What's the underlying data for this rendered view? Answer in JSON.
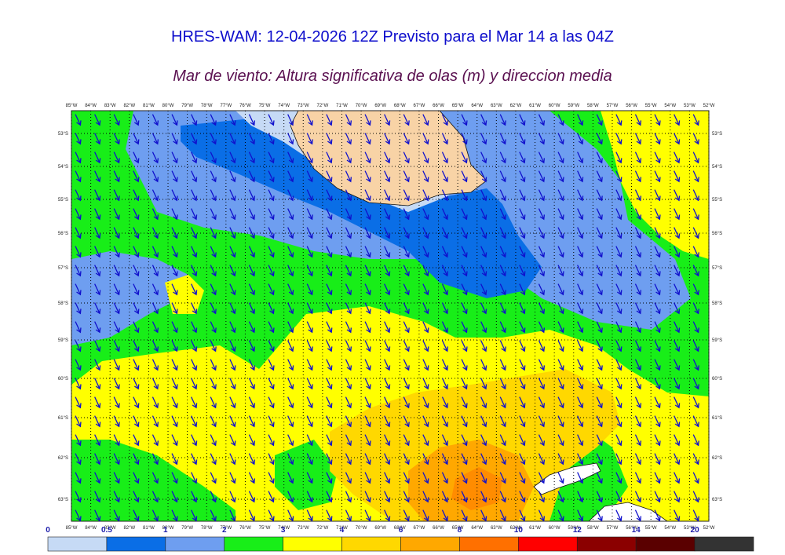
{
  "header": {
    "title": "HRES-WAM: 12-04-2026 12Z Previsto para el Mar 14 a las 04Z",
    "subtitle": "Mar de viento: Altura significativa de olas (m) y direccion media"
  },
  "map": {
    "lon_labels": [
      "85°W",
      "84°W",
      "83°W",
      "82°W",
      "81°W",
      "80°W",
      "79°W",
      "78°W",
      "77°W",
      "76°W",
      "75°W",
      "74°W",
      "73°W",
      "72°W",
      "71°W",
      "70°W",
      "69°W",
      "68°W",
      "67°W",
      "66°W",
      "65°W",
      "64°W",
      "63°W",
      "62°W",
      "61°W",
      "60°W",
      "59°W",
      "58°W",
      "57°W",
      "56°W",
      "55°W",
      "54°W",
      "53°W",
      "52°W"
    ],
    "lat_labels": [
      "53°S",
      "54°S",
      "55°S",
      "56°S",
      "57°S",
      "58°S",
      "59°S",
      "60°S",
      "61°S",
      "62°S",
      "63°S"
    ],
    "colors": {
      "land": "#f8d3a6",
      "arrow": "#1010cc",
      "band_0_05": "#c6daf5",
      "band_05_1": "#0a6ee6",
      "band_1_15": "#6e9ef0",
      "band_15_2": "#6e9ef0",
      "band_2_3": "#18ee18",
      "band_3_4": "#ffff00",
      "band_4_5": "#ffd800",
      "band_5_6": "#ffa800"
    },
    "arrow_direction": "south-southeast"
  },
  "colorbar": {
    "ticks": [
      "0",
      "0.5",
      "1",
      "2",
      "3",
      "4",
      "6",
      "8",
      "10",
      "12",
      "14",
      "20"
    ],
    "colors": [
      "#c6daf5",
      "#0a6ee6",
      "#6e9ef0",
      "#18ee18",
      "#ffff00",
      "#ffd800",
      "#ffa800",
      "#ff7000",
      "#ff0000",
      "#8b0000",
      "#5a0000",
      "#333333"
    ]
  }
}
